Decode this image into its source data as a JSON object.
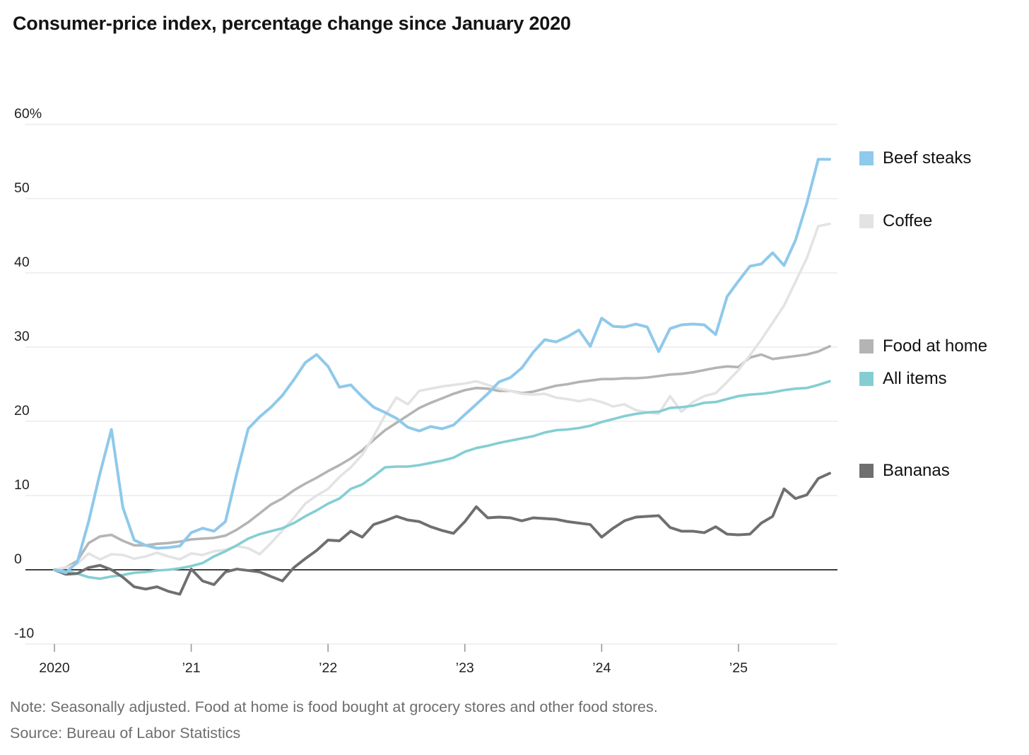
{
  "title": "Consumer-price index, percentage change since January 2020",
  "note": "Note: Seasonally adjusted. Food at home is food bought at grocery stores and other food stores.",
  "source": "Source: Bureau of Labor Statistics",
  "chart_data": {
    "type": "line",
    "x_start": "2020-01",
    "x_end": "2025-09",
    "x_interval": "monthly",
    "ylim": [
      -10,
      60
    ],
    "grid": "horizontal",
    "zero_baseline": true,
    "legend_position": "right",
    "y_ticks": [
      {
        "label": "60%",
        "value": 60
      },
      {
        "label": "50",
        "value": 50
      },
      {
        "label": "40",
        "value": 40
      },
      {
        "label": "30",
        "value": 30
      },
      {
        "label": "20",
        "value": 20
      },
      {
        "label": "10",
        "value": 10
      },
      {
        "label": "0",
        "value": 0
      },
      {
        "label": "-10",
        "value": -10
      }
    ],
    "x_ticks": [
      {
        "label": "2020",
        "month_index": 0
      },
      {
        "label": "’21",
        "month_index": 12
      },
      {
        "label": "’22",
        "month_index": 24
      },
      {
        "label": "’23",
        "month_index": 36
      },
      {
        "label": "’24",
        "month_index": 48
      },
      {
        "label": "’25",
        "month_index": 60
      }
    ],
    "series": [
      {
        "name": "Beef steaks",
        "color": "#8FC9EB",
        "values": [
          0,
          -0.4,
          1.0,
          6.5,
          13.0,
          18.9,
          8.4,
          4.0,
          3.3,
          2.9,
          3.0,
          3.2,
          5.0,
          5.6,
          5.2,
          6.5,
          13.0,
          19.0,
          20.6,
          21.9,
          23.5,
          25.6,
          27.9,
          29.0,
          27.4,
          24.6,
          24.9,
          23.3,
          21.9,
          21.2,
          20.4,
          19.2,
          18.7,
          19.3,
          19.0,
          19.5,
          20.9,
          22.3,
          23.7,
          25.3,
          25.9,
          27.2,
          29.3,
          31.0,
          30.7,
          31.4,
          32.3,
          30.1,
          33.9,
          32.8,
          32.7,
          33.1,
          32.7,
          29.4,
          32.5,
          33.0,
          33.1,
          33.0,
          31.7,
          36.8,
          38.9,
          40.9,
          41.2,
          42.7,
          41.0,
          44.4,
          49.4,
          55.3,
          55.3
        ]
      },
      {
        "name": "Coffee",
        "color": "#E3E3E3",
        "values": [
          0,
          0.3,
          0.8,
          2.2,
          1.4,
          2.1,
          2.0,
          1.5,
          1.8,
          2.3,
          1.8,
          1.4,
          2.2,
          2.0,
          2.5,
          2.7,
          3.2,
          2.9,
          2.1,
          3.6,
          5.3,
          7.0,
          8.9,
          10.0,
          10.9,
          12.5,
          13.8,
          15.5,
          18.0,
          20.8,
          23.2,
          22.3,
          24.1,
          24.4,
          24.7,
          24.9,
          25.1,
          25.4,
          24.9,
          24.4,
          24.1,
          23.7,
          23.6,
          23.7,
          23.2,
          23.0,
          22.7,
          23.0,
          22.6,
          22.0,
          22.3,
          21.5,
          21.2,
          21.0,
          23.4,
          21.3,
          22.6,
          23.4,
          23.8,
          25.3,
          26.9,
          28.9,
          31.0,
          33.3,
          35.6,
          38.8,
          42.0,
          46.3,
          46.6
        ]
      },
      {
        "name": "Food at home",
        "color": "#B4B4B4",
        "values": [
          0,
          0.3,
          1.2,
          3.6,
          4.5,
          4.7,
          3.9,
          3.3,
          3.3,
          3.5,
          3.6,
          3.8,
          4.1,
          4.2,
          4.3,
          4.6,
          5.4,
          6.4,
          7.6,
          8.8,
          9.6,
          10.7,
          11.6,
          12.4,
          13.3,
          14.1,
          15.0,
          16.1,
          17.5,
          18.8,
          19.8,
          20.8,
          21.8,
          22.5,
          23.1,
          23.7,
          24.2,
          24.5,
          24.4,
          24.1,
          24.1,
          23.8,
          24.0,
          24.4,
          24.8,
          25.0,
          25.3,
          25.5,
          25.7,
          25.7,
          25.8,
          25.8,
          25.9,
          26.1,
          26.3,
          26.4,
          26.6,
          26.9,
          27.2,
          27.4,
          27.3,
          28.6,
          29.0,
          28.4,
          28.6,
          28.8,
          29.0,
          29.4,
          30.1
        ]
      },
      {
        "name": "All items",
        "color": "#84CED3",
        "values": [
          0,
          -0.2,
          -0.5,
          -1.0,
          -1.2,
          -0.9,
          -0.7,
          -0.4,
          -0.3,
          -0.1,
          0.0,
          0.2,
          0.5,
          0.9,
          1.8,
          2.5,
          3.3,
          4.2,
          4.8,
          5.2,
          5.6,
          6.3,
          7.2,
          8.0,
          8.9,
          9.6,
          10.9,
          11.5,
          12.6,
          13.8,
          13.9,
          13.9,
          14.1,
          14.4,
          14.7,
          15.1,
          15.9,
          16.4,
          16.7,
          17.1,
          17.4,
          17.7,
          18.0,
          18.5,
          18.8,
          18.9,
          19.1,
          19.4,
          19.9,
          20.3,
          20.7,
          21.0,
          21.2,
          21.3,
          21.8,
          21.9,
          22.1,
          22.5,
          22.6,
          23.0,
          23.4,
          23.6,
          23.7,
          23.9,
          24.2,
          24.4,
          24.5,
          24.9,
          25.4
        ]
      },
      {
        "name": "Bananas",
        "color": "#6F6F6F",
        "values": [
          0,
          -0.6,
          -0.5,
          0.3,
          0.6,
          0.0,
          -1.0,
          -2.3,
          -2.6,
          -2.3,
          -2.9,
          -3.3,
          0.1,
          -1.5,
          -2.0,
          -0.3,
          0.1,
          -0.1,
          -0.3,
          -0.9,
          -1.5,
          0.3,
          1.5,
          2.6,
          4.0,
          3.9,
          5.2,
          4.4,
          6.1,
          6.6,
          7.2,
          6.7,
          6.5,
          5.8,
          5.3,
          4.9,
          6.5,
          8.5,
          7.0,
          7.1,
          7.0,
          6.6,
          7.0,
          6.9,
          6.8,
          6.5,
          6.3,
          6.1,
          4.4,
          5.6,
          6.6,
          7.1,
          7.2,
          7.3,
          5.7,
          5.2,
          5.2,
          5.0,
          5.8,
          4.8,
          4.7,
          4.8,
          6.3,
          7.2,
          10.9,
          9.6,
          10.1,
          12.3,
          13.0
        ]
      }
    ]
  }
}
